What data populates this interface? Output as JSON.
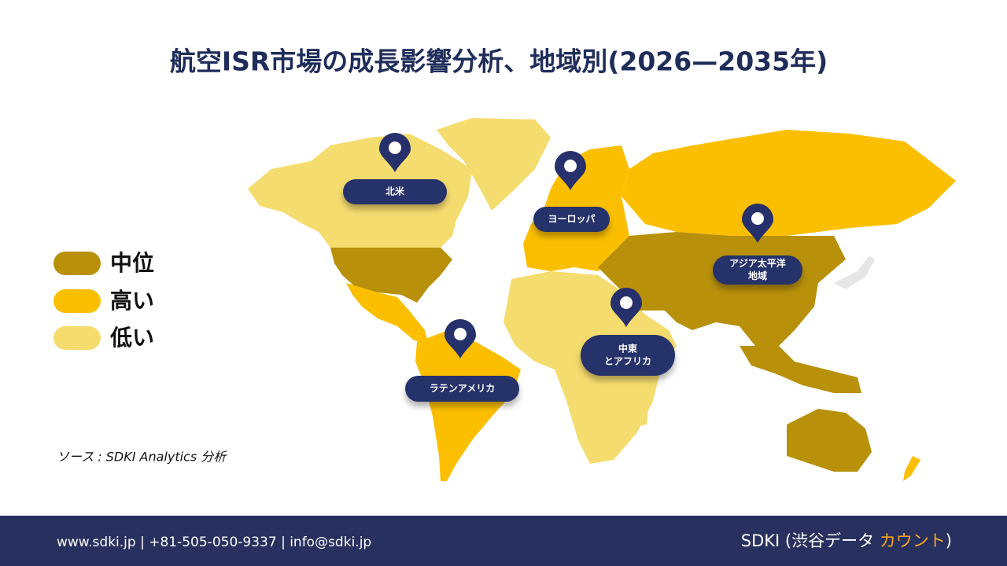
{
  "header": {
    "title": "航空ISR市場の成長影響分析、地域別(2026—2035年)"
  },
  "legend": [
    {
      "label": "中位"
    },
    {
      "label": "高い"
    },
    {
      "label": "低い"
    }
  ],
  "regions": [
    {
      "lines": [
        "北米"
      ]
    },
    {
      "lines": [
        "ヨーロッパ"
      ]
    },
    {
      "lines": [
        "アジア太平洋",
        "地域"
      ]
    },
    {
      "lines": [
        "中東",
        "とアフリカ"
      ]
    },
    {
      "lines": [
        "ラテンアメリカ"
      ]
    }
  ],
  "source": "ソース : SDKI Analytics 分析",
  "footer": {
    "contact": "www.sdki.jp | +81-505-050-9337 | info@sdki.jp",
    "brand": {
      "prefix": "SDKI (渋谷データ ",
      "highlight": "カウント",
      "suffix": ")"
    }
  }
}
